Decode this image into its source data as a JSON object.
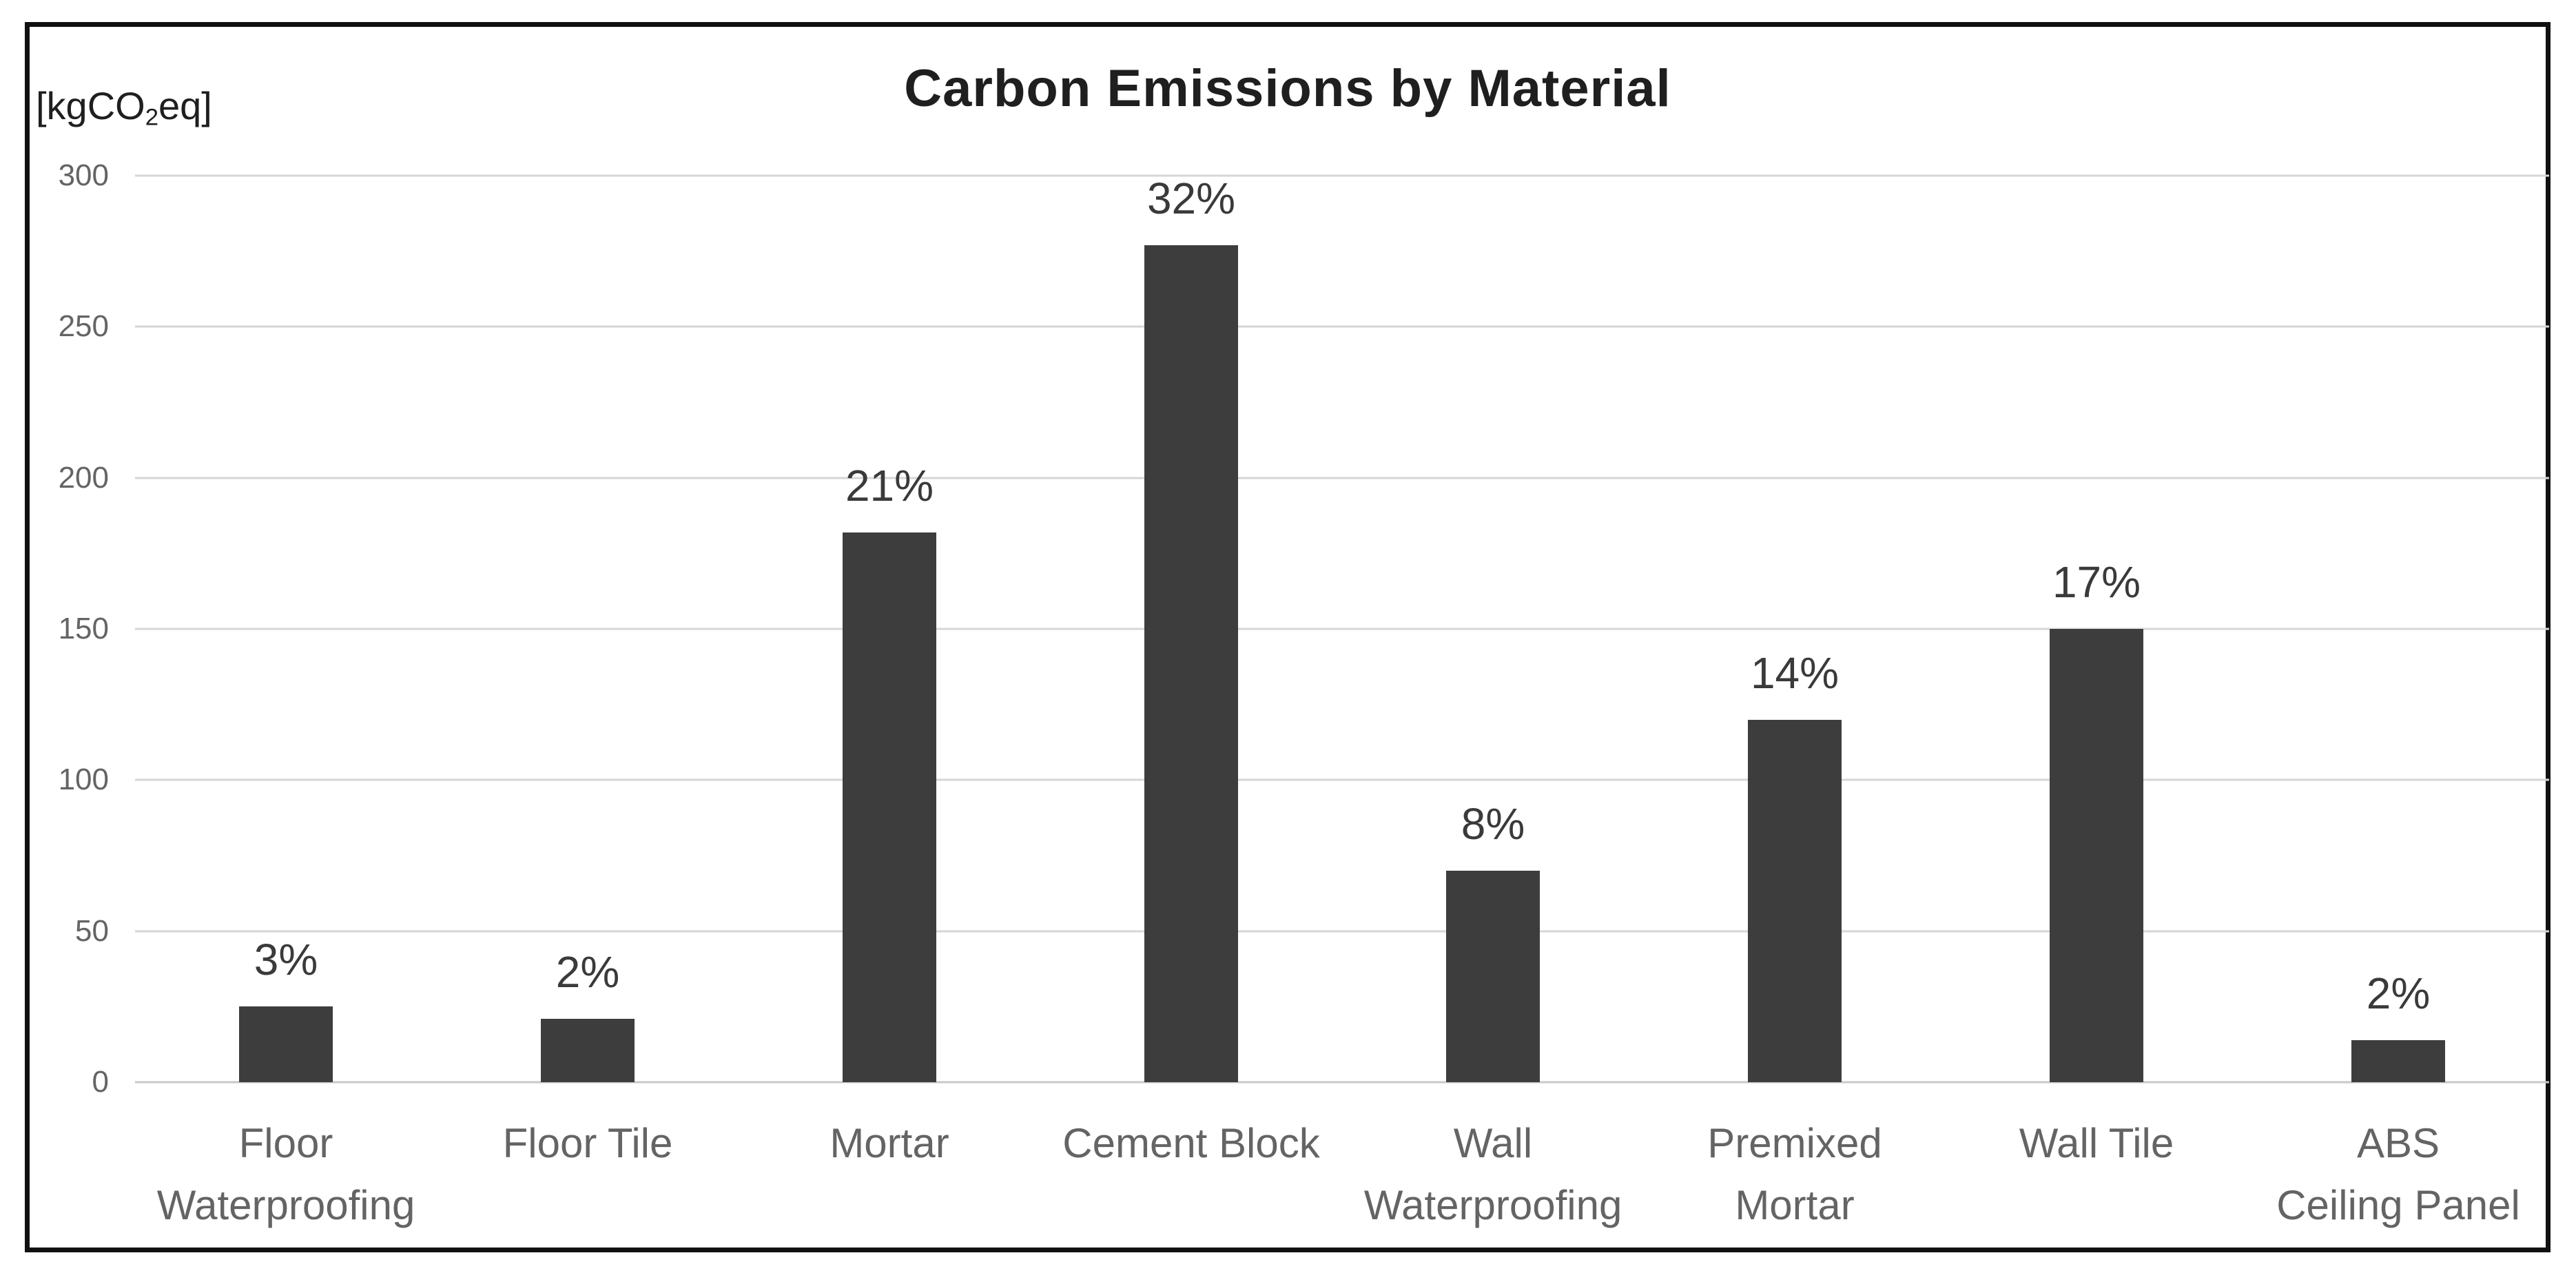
{
  "chart_data": {
    "type": "bar",
    "title": "Carbon Emissions by Material",
    "unit_label": {
      "prefix": "[kgCO",
      "subscript": "2",
      "suffix": "eq]"
    },
    "categories": [
      "Floor\nWaterproofing",
      "Floor Tile",
      "Mortar",
      "Cement Block",
      "Wall\nWaterproofing",
      "Premixed\nMortar",
      "Wall Tile",
      "ABS\nCeiling Panel"
    ],
    "values": [
      25,
      21,
      182,
      277,
      70,
      120,
      150,
      14
    ],
    "data_labels": [
      "3%",
      "2%",
      "21%",
      "32%",
      "8%",
      "14%",
      "17%",
      "2%"
    ],
    "ylim": [
      0,
      300
    ],
    "ytick_step": 50,
    "yticks": [
      300,
      250,
      200,
      150,
      100,
      50,
      0
    ],
    "grid": true,
    "legend_position": "none",
    "colors": {
      "bar": "#3d3d3d",
      "gridline": "#d6d6d6",
      "baseline": "#c8c8c8",
      "tick_label": "#646464",
      "data_label": "#3a3a3a",
      "title": "#1f1f1f",
      "frame_border": "#111111",
      "background": "#ffffff"
    }
  }
}
